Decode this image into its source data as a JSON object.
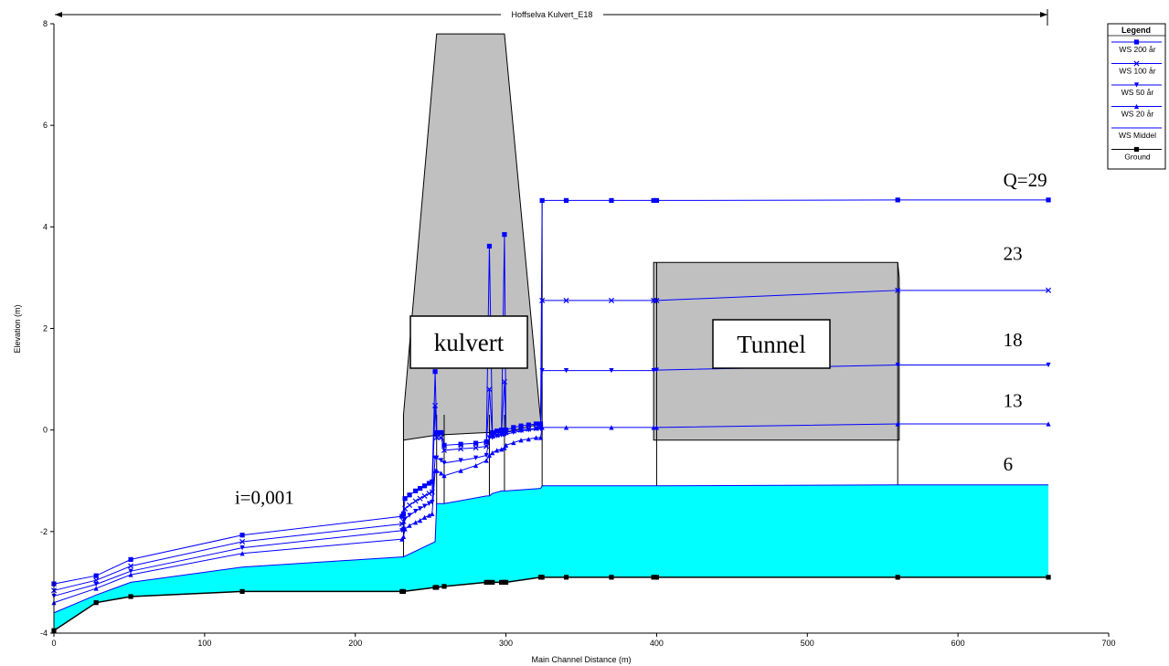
{
  "chart_data": {
    "type": "line",
    "title": "",
    "reach_label": "Hoffselva Kulvert_E18",
    "xlabel": "Main Channel Distance (m)",
    "ylabel": "Elevation (m)",
    "xlim": [
      0,
      700
    ],
    "ylim": [
      -4,
      8
    ],
    "xticks": [
      0,
      100,
      200,
      300,
      400,
      500,
      600,
      700
    ],
    "yticks": [
      -4,
      -2,
      0,
      2,
      4,
      6,
      8
    ],
    "grid": false,
    "legend": {
      "title": "Legend",
      "placement": "top-right",
      "entries": [
        "WS 200 år",
        "WS 100 år",
        "WS 50 år",
        "WS 20 år",
        "WS Middel",
        "Ground"
      ]
    },
    "series": [
      {
        "name": "WS 200 år",
        "color": "#0000ff",
        "marker": "square",
        "x": [
          0,
          28,
          51,
          125,
          231,
          232,
          233,
          236,
          240,
          243,
          246,
          249,
          251,
          253,
          254,
          257,
          259,
          270,
          280,
          287,
          289,
          291,
          294,
          297,
          299,
          300,
          305,
          310,
          315,
          320,
          323,
          324,
          340,
          370,
          398,
          400,
          560,
          660
        ],
        "y": [
          -3.03,
          -2.87,
          -2.55,
          -2.07,
          -1.7,
          -1.65,
          -1.35,
          -1.28,
          -1.2,
          -1.15,
          -1.1,
          -1.05,
          -1.02,
          1.15,
          -0.05,
          -0.05,
          -0.3,
          -0.28,
          -0.26,
          -0.23,
          3.62,
          -0.05,
          -0.02,
          0.0,
          3.85,
          0.0,
          0.05,
          0.08,
          0.1,
          0.12,
          0.12,
          4.52,
          4.52,
          4.52,
          4.52,
          4.52,
          4.53,
          4.53
        ]
      },
      {
        "name": "WS 100 år",
        "color": "#0000ff",
        "marker": "x",
        "x": [
          0,
          28,
          51,
          125,
          231,
          232,
          233,
          236,
          240,
          243,
          246,
          249,
          251,
          253,
          254,
          257,
          259,
          270,
          280,
          287,
          289,
          291,
          294,
          297,
          299,
          300,
          305,
          310,
          315,
          320,
          323,
          324,
          340,
          370,
          398,
          400,
          560,
          660
        ],
        "y": [
          -3.16,
          -2.96,
          -2.68,
          -2.2,
          -1.85,
          -1.8,
          -1.55,
          -1.48,
          -1.4,
          -1.35,
          -1.3,
          -1.25,
          -1.22,
          0.48,
          -0.15,
          -0.15,
          -0.4,
          -0.37,
          -0.35,
          -0.32,
          0.8,
          -0.12,
          -0.1,
          -0.08,
          0.95,
          -0.05,
          -0.02,
          0.0,
          0.02,
          0.03,
          0.05,
          2.55,
          2.55,
          2.55,
          2.55,
          2.55,
          2.75,
          2.75
        ]
      },
      {
        "name": "WS 50 år",
        "color": "#0000ff",
        "marker": "triangle-down",
        "x": [
          0,
          28,
          51,
          125,
          231,
          232,
          233,
          236,
          240,
          243,
          246,
          249,
          251,
          253,
          254,
          257,
          259,
          270,
          280,
          287,
          289,
          291,
          294,
          297,
          299,
          300,
          305,
          310,
          315,
          320,
          323,
          324,
          340,
          370,
          398,
          400,
          560,
          660
        ],
        "y": [
          -3.27,
          -3.04,
          -2.78,
          -2.32,
          -1.98,
          -1.95,
          -1.75,
          -1.68,
          -1.6,
          -1.55,
          -1.5,
          -1.45,
          -1.42,
          -0.55,
          -0.55,
          -0.6,
          -0.65,
          -0.6,
          -0.55,
          -0.5,
          -0.15,
          -0.15,
          -0.12,
          -0.1,
          -0.1,
          -0.08,
          -0.05,
          -0.02,
          0.0,
          0.02,
          0.02,
          1.17,
          1.17,
          1.17,
          1.17,
          1.18,
          1.28,
          1.28
        ]
      },
      {
        "name": "WS 20 år",
        "color": "#0000ff",
        "marker": "triangle-up",
        "x": [
          0,
          28,
          51,
          125,
          231,
          232,
          233,
          236,
          240,
          243,
          246,
          249,
          251,
          253,
          254,
          257,
          259,
          270,
          280,
          287,
          289,
          291,
          294,
          297,
          299,
          300,
          305,
          310,
          315,
          320,
          323,
          324,
          340,
          370,
          398,
          400,
          560,
          660
        ],
        "y": [
          -3.4,
          -3.12,
          -2.85,
          -2.43,
          -2.15,
          -2.1,
          -1.95,
          -1.88,
          -1.82,
          -1.78,
          -1.72,
          -1.68,
          -1.65,
          -0.8,
          -0.8,
          -0.85,
          -0.9,
          -0.8,
          -0.7,
          -0.6,
          -0.5,
          -0.45,
          -0.4,
          -0.38,
          -0.35,
          -0.3,
          -0.25,
          -0.2,
          -0.18,
          -0.15,
          -0.15,
          0.05,
          0.05,
          0.05,
          0.05,
          0.05,
          0.12,
          0.12
        ]
      },
      {
        "name": "WS Middel",
        "color": "#00ffff",
        "marker": "none",
        "x": [
          0,
          28,
          51,
          125,
          231,
          232,
          253,
          254,
          259,
          287,
          289,
          291,
          297,
          299,
          300,
          323,
          324,
          400,
          560,
          660
        ],
        "y": [
          -3.6,
          -3.25,
          -3.0,
          -2.7,
          -2.5,
          -2.5,
          -2.2,
          -1.45,
          -1.45,
          -1.3,
          -1.3,
          -1.25,
          -1.2,
          -1.2,
          -1.2,
          -1.15,
          -1.1,
          -1.1,
          -1.08,
          -1.08
        ]
      },
      {
        "name": "Ground",
        "color": "#000000",
        "marker": "square",
        "x": [
          0,
          28,
          51,
          125,
          231,
          232,
          253,
          254,
          259,
          287,
          289,
          291,
          297,
          299,
          300,
          323,
          324,
          340,
          370,
          398,
          400,
          560,
          660
        ],
        "y": [
          -3.95,
          -3.4,
          -3.28,
          -3.18,
          -3.18,
          -3.18,
          -3.1,
          -3.1,
          -3.08,
          -3.0,
          -3.0,
          -3.0,
          -3.0,
          -3.0,
          -3.0,
          -2.9,
          -2.9,
          -2.9,
          -2.9,
          -2.9,
          -2.9,
          -2.9,
          -2.9
        ]
      }
    ],
    "structures": [
      {
        "name": "kulvert",
        "fill": "#c0c0c0",
        "x": [
          232,
          254,
          287,
          299,
          323
        ],
        "top": [
          0.3,
          7.8,
          7.8,
          7.8,
          0.2
        ],
        "bottom": [
          -0.2,
          -0.1,
          -0.05,
          -0.05,
          0.12
        ]
      },
      {
        "name": "tunnel",
        "fill": "#c0c0c0",
        "x": [
          398,
          400,
          560,
          561
        ],
        "top": [
          3.3,
          3.3,
          3.3,
          3.0
        ],
        "bottom": [
          -0.2,
          -0.2,
          -0.2,
          -0.2
        ]
      }
    ],
    "annotations": [
      {
        "text": "Q=29",
        "x": 630,
        "y": 4.8
      },
      {
        "text": "23",
        "x": 630,
        "y": 3.35
      },
      {
        "text": "18",
        "x": 630,
        "y": 1.65
      },
      {
        "text": "13",
        "x": 630,
        "y": 0.45
      },
      {
        "text": "6",
        "x": 630,
        "y": -0.8
      },
      {
        "text": "i=0,001",
        "x": 120,
        "y": -1.45
      }
    ],
    "box_labels": [
      {
        "text": "kulvert",
        "x": 285,
        "y": 1.7
      },
      {
        "text": "Tunnel",
        "x": 480,
        "y": 1.7
      }
    ]
  }
}
